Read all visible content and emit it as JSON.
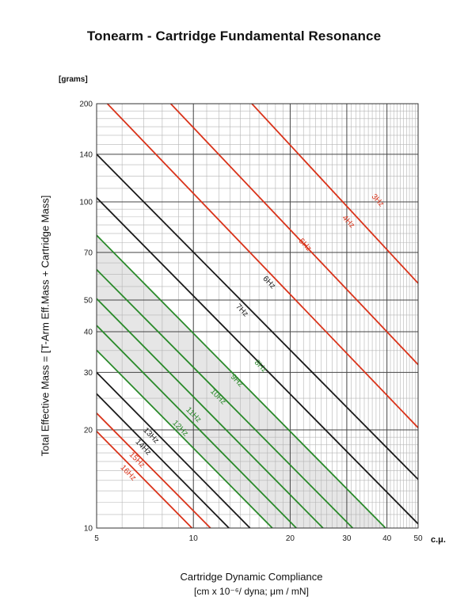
{
  "chart_data": {
    "type": "line",
    "title": "Tonearm - Cartridge Fundamental Resonance",
    "y_unit": "[grams]",
    "ylabel": "Total Effective Mass = [T-Arm Eff.Mass + Cartridge Mass]",
    "xlabel": "Cartridge Dynamic Compliance",
    "xlabel_units": "[cm x 10⁻⁶/ dyna; μm / mN]",
    "x_unit_tag": "c.μ.",
    "x_scale": "log",
    "y_scale": "log",
    "xlim": [
      5,
      50
    ],
    "ylim": [
      10,
      200
    ],
    "x_ticks": [
      5,
      10,
      20,
      30,
      40,
      50
    ],
    "y_ticks": [
      10,
      20,
      30,
      40,
      50,
      70,
      100,
      140,
      200
    ],
    "grid": true,
    "recommended_band": "8Hz – 12Hz (shaded)",
    "series": [
      {
        "name": "3Hz",
        "color": "#d9331a",
        "points": [
          [
            15.2,
            200
          ],
          [
            50,
            56.3
          ]
        ]
      },
      {
        "name": "4Hz",
        "color": "#d9331a",
        "points": [
          [
            8.5,
            200
          ],
          [
            50,
            31.7
          ]
        ]
      },
      {
        "name": "5Hz",
        "color": "#d9331a",
        "points": [
          [
            5.4,
            200
          ],
          [
            50,
            20.3
          ]
        ]
      },
      {
        "name": "6Hz",
        "color": "#1a1a1a",
        "points": [
          [
            5,
            140
          ],
          [
            50,
            14.1
          ]
        ]
      },
      {
        "name": "7Hz",
        "color": "#1a1a1a",
        "points": [
          [
            5,
            103
          ],
          [
            50,
            10.3
          ]
        ]
      },
      {
        "name": "8Hz",
        "color": "#2a8a2a",
        "points": [
          [
            5,
            79
          ],
          [
            39.6,
            10
          ]
        ]
      },
      {
        "name": "9Hz",
        "color": "#2a8a2a",
        "points": [
          [
            5,
            62
          ],
          [
            31.3,
            10
          ]
        ]
      },
      {
        "name": "10Hz",
        "color": "#2a8a2a",
        "points": [
          [
            5,
            50.5
          ],
          [
            25.3,
            10
          ]
        ]
      },
      {
        "name": "11Hz",
        "color": "#2a8a2a",
        "points": [
          [
            5,
            41.8
          ],
          [
            20.9,
            10
          ]
        ]
      },
      {
        "name": "12Hz",
        "color": "#2a8a2a",
        "points": [
          [
            5,
            35.1
          ],
          [
            17.6,
            10
          ]
        ]
      },
      {
        "name": "13Hz",
        "color": "#1a1a1a",
        "points": [
          [
            5,
            30
          ],
          [
            15,
            10
          ]
        ]
      },
      {
        "name": "14Hz",
        "color": "#1a1a1a",
        "points": [
          [
            5,
            25.8
          ],
          [
            12.9,
            10
          ]
        ]
      },
      {
        "name": "15Hz",
        "color": "#d9331a",
        "points": [
          [
            5,
            22.5
          ],
          [
            11.3,
            10
          ]
        ]
      },
      {
        "name": "16Hz",
        "color": "#d9331a",
        "points": [
          [
            5,
            19.8
          ],
          [
            9.9,
            10
          ]
        ]
      }
    ],
    "label_positions_data_units": {
      "3Hz": [
        37,
        100
      ],
      "4Hz": [
        30,
        86
      ],
      "5Hz": [
        22,
        73
      ],
      "6Hz": [
        17,
        56
      ],
      "7Hz": [
        14,
        46
      ],
      "8Hz": [
        16,
        31
      ],
      "9Hz": [
        13.5,
        28
      ],
      "10Hz": [
        11.8,
        25
      ],
      "11Hz": [
        9.9,
        22
      ],
      "12Hz": [
        9,
        20
      ],
      "13Hz": [
        7.3,
        19
      ],
      "14Hz": [
        6.9,
        17.5
      ],
      "15Hz": [
        6.6,
        16
      ],
      "16Hz": [
        6.2,
        14.6
      ]
    }
  }
}
